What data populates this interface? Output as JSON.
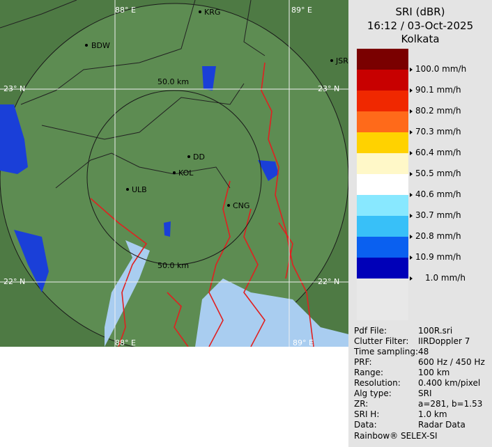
{
  "header": {
    "product": "SRI (dBR)",
    "timestamp": "16:12 / 03-Oct-2025",
    "site": "Kolkata"
  },
  "map": {
    "grid_labels": [
      "88° E",
      "89° E",
      "23° N",
      "23° N",
      "22° N",
      "22° N",
      "88° E",
      "89° E"
    ],
    "ring_labels": [
      "50.0 km",
      "50.0 km"
    ],
    "places": [
      "KRG",
      "BDW",
      "JSR",
      "DD",
      "KOL",
      "ULB",
      "CNG"
    ]
  },
  "legend": [
    {
      "label": "100.0 mm/h",
      "color": "#c80000"
    },
    {
      "label": "90.1 mm/h",
      "color": "#f02800"
    },
    {
      "label": "80.2 mm/h",
      "color": "#ff6a1a"
    },
    {
      "label": "70.3 mm/h",
      "color": "#ffd200"
    },
    {
      "label": "60.4 mm/h",
      "color": "#fff8c8"
    },
    {
      "label": "50.5 mm/h",
      "color": "#ffffff"
    },
    {
      "label": "40.6 mm/h",
      "color": "#88e8ff"
    },
    {
      "label": "30.7 mm/h",
      "color": "#38c0f8"
    },
    {
      "label": "20.8 mm/h",
      "color": "#0a60f0"
    },
    {
      "label": "10.9 mm/h",
      "color": "#0000b8"
    },
    {
      "label": "1.0 mm/h",
      "color": "#e8e8e8"
    }
  ],
  "legend_top_color": "#7a0000",
  "metadata": [
    [
      "Pdf File:",
      "100R.sri"
    ],
    [
      "Clutter Filter:",
      "IIRDoppler 7"
    ],
    [
      "Time sampling:",
      "48"
    ],
    [
      "PRF:",
      "600 Hz / 450 Hz"
    ],
    [
      "Range:",
      "100 km"
    ],
    [
      "Resolution:",
      "0.400 km/pixel"
    ],
    [
      "Alg type:",
      "SRI"
    ],
    [
      "ZR:",
      "a=281, b=1.53"
    ],
    [
      "SRI H:",
      "1.0 km"
    ],
    [
      "Data:",
      "Radar Data"
    ]
  ],
  "footer": "Rainbow® SELEX-SI"
}
